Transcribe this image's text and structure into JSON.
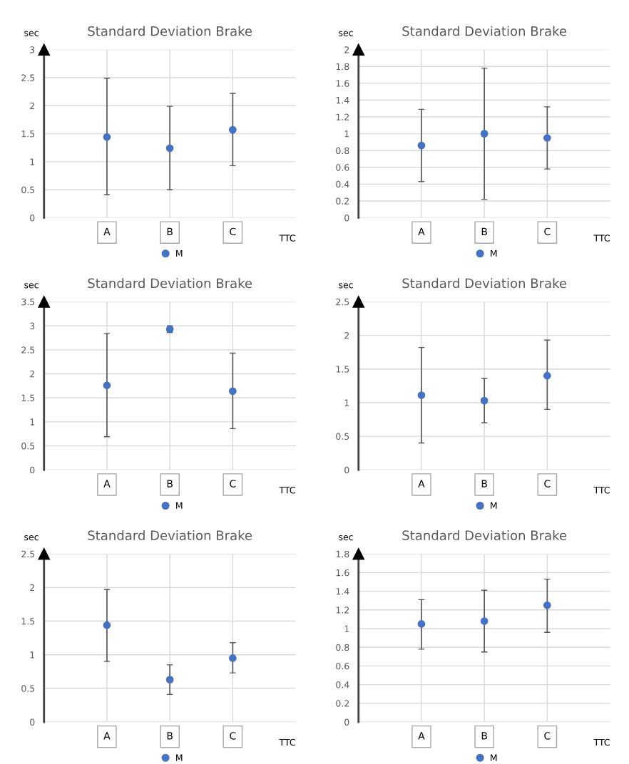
{
  "chart_data": [
    {
      "type": "scatter",
      "title": "Standard Deviation Brake",
      "ylabel": "sec",
      "xlabel": "TTC",
      "categories": [
        "A",
        "B",
        "C"
      ],
      "ylim": [
        0,
        3
      ],
      "yticks": [
        0,
        0.5,
        1,
        1.5,
        2,
        2.5,
        3
      ],
      "grid": true,
      "legend": "bottom",
      "marker": "circle",
      "series": [
        {
          "name": "M",
          "color": "#4472c4",
          "values": [
            1.44,
            1.24,
            1.57
          ],
          "errors": [
            [
              0.41,
              2.49
            ],
            [
              0.5,
              1.99
            ],
            [
              0.93,
              2.22
            ]
          ]
        }
      ]
    },
    {
      "type": "scatter",
      "title": "Standard Deviation Brake",
      "ylabel": "sec",
      "xlabel": "TTC",
      "categories": [
        "A",
        "B",
        "C"
      ],
      "ylim": [
        0,
        2
      ],
      "yticks": [
        0,
        0.2,
        0.4,
        0.6,
        0.8,
        1,
        1.2,
        1.4,
        1.6,
        1.8,
        2
      ],
      "grid": true,
      "legend": "bottom",
      "marker": "circle",
      "series": [
        {
          "name": "M",
          "color": "#4472c4",
          "values": [
            0.86,
            1.0,
            0.95
          ],
          "errors": [
            [
              0.43,
              1.29
            ],
            [
              0.22,
              1.78
            ],
            [
              0.58,
              1.32
            ]
          ]
        }
      ]
    },
    {
      "type": "scatter",
      "title": "Standard Deviation Brake",
      "ylabel": "sec",
      "xlabel": "TTC",
      "categories": [
        "A",
        "B",
        "C"
      ],
      "ylim": [
        0,
        3.5
      ],
      "yticks": [
        0,
        0.5,
        1,
        1.5,
        2,
        2.5,
        3,
        3.5
      ],
      "grid": true,
      "legend": "bottom",
      "marker": "circle",
      "series": [
        {
          "name": "M",
          "color": "#4472c4",
          "values": [
            1.76,
            2.93,
            1.64
          ],
          "errors": [
            [
              0.69,
              2.84
            ],
            [
              2.86,
              3.0
            ],
            [
              0.86,
              2.43
            ]
          ]
        }
      ]
    },
    {
      "type": "scatter",
      "title": "Standard Deviation Brake",
      "ylabel": "sec",
      "xlabel": "TTC",
      "categories": [
        "A",
        "B",
        "C"
      ],
      "ylim": [
        0,
        2.5
      ],
      "yticks": [
        0,
        0.5,
        1,
        1.5,
        2,
        2.5
      ],
      "grid": true,
      "legend": "bottom",
      "marker": "circle",
      "series": [
        {
          "name": "M",
          "color": "#4472c4",
          "values": [
            1.11,
            1.03,
            1.4
          ],
          "errors": [
            [
              0.4,
              1.82
            ],
            [
              0.7,
              1.36
            ],
            [
              0.9,
              1.93
            ]
          ]
        }
      ]
    },
    {
      "type": "scatter",
      "title": "Standard Deviation Brake",
      "ylabel": "sec",
      "xlabel": "TTC",
      "categories": [
        "A",
        "B",
        "C"
      ],
      "ylim": [
        0,
        2.5
      ],
      "yticks": [
        0,
        0.5,
        1,
        1.5,
        2,
        2.5
      ],
      "grid": true,
      "legend": "bottom",
      "marker": "circle",
      "series": [
        {
          "name": "M",
          "color": "#4472c4",
          "values": [
            1.44,
            0.63,
            0.95
          ],
          "errors": [
            [
              0.9,
              1.97
            ],
            [
              0.41,
              0.85
            ],
            [
              0.73,
              1.18
            ]
          ]
        }
      ]
    },
    {
      "type": "scatter",
      "title": "Standard Deviation Brake",
      "ylabel": "sec",
      "xlabel": "TTC",
      "categories": [
        "A",
        "B",
        "C"
      ],
      "ylim": [
        0,
        1.8
      ],
      "yticks": [
        0,
        0.2,
        0.4,
        0.6,
        0.8,
        1,
        1.2,
        1.4,
        1.6,
        1.8
      ],
      "grid": true,
      "legend": "bottom",
      "marker": "circle",
      "series": [
        {
          "name": "M",
          "color": "#4472c4",
          "values": [
            1.05,
            1.08,
            1.25
          ],
          "errors": [
            [
              0.78,
              1.31
            ],
            [
              0.75,
              1.41
            ],
            [
              0.96,
              1.53
            ]
          ]
        }
      ]
    }
  ]
}
